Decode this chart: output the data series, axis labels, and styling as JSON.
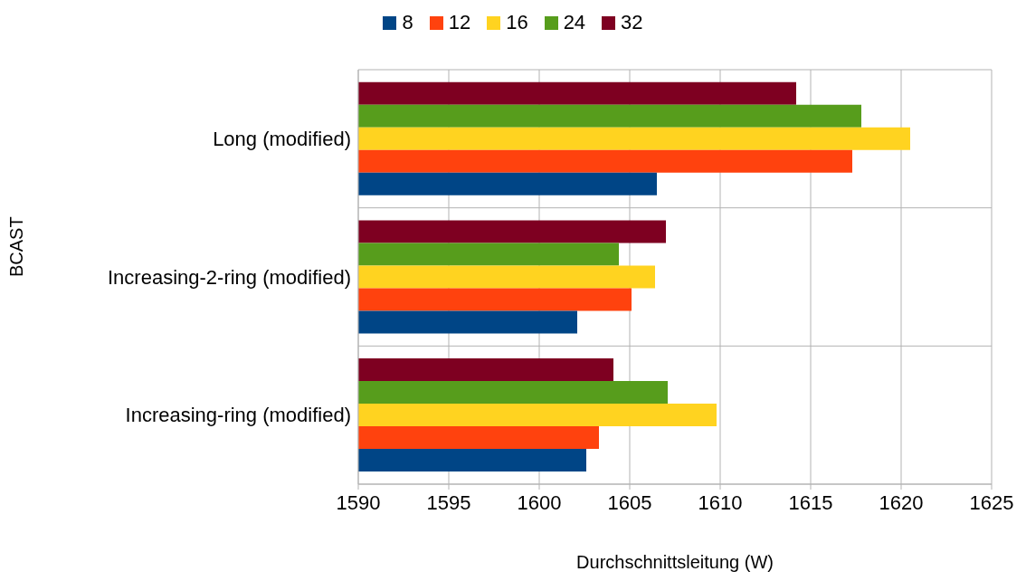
{
  "chart_data": {
    "type": "bar",
    "orientation": "horizontal",
    "xlabel": "Durchschnittsleitung (W)",
    "ylabel": "BCAST",
    "categories": [
      "Long (modified)",
      "Increasing-2-ring (modified)",
      "Increasing-ring (modified)"
    ],
    "series": [
      {
        "name": "8",
        "color": "#004586",
        "values": [
          1606.5,
          1602.1,
          1602.6
        ]
      },
      {
        "name": "12",
        "color": "#ff420e",
        "values": [
          1617.3,
          1605.1,
          1603.3
        ]
      },
      {
        "name": "16",
        "color": "#ffd320",
        "values": [
          1620.5,
          1606.4,
          1609.8
        ]
      },
      {
        "name": "24",
        "color": "#579d1c",
        "values": [
          1617.8,
          1604.4,
          1607.1
        ]
      },
      {
        "name": "32",
        "color": "#7e0021",
        "values": [
          1614.2,
          1607.0,
          1604.1
        ]
      }
    ],
    "xlim": [
      1590,
      1625
    ],
    "xticks": [
      1590,
      1595,
      1600,
      1605,
      1610,
      1615,
      1620,
      1625
    ],
    "grid": true,
    "legend": "top"
  }
}
